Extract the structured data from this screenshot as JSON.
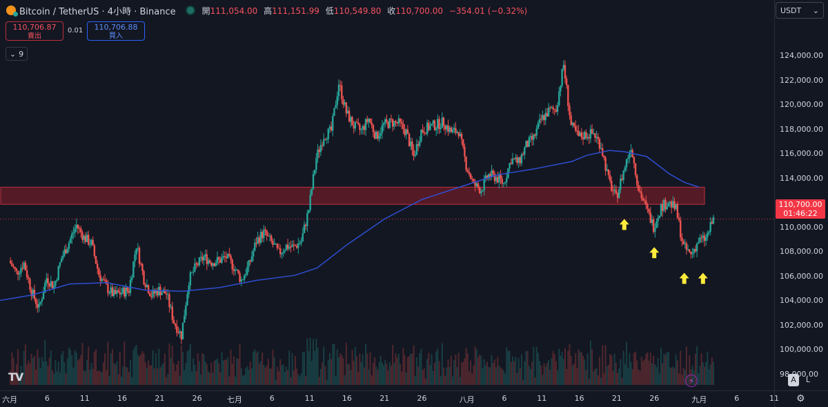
{
  "header": {
    "symbol": "Bitcoin / TetherUS · 4小時 · Binance",
    "ohlc": [
      {
        "label": "開",
        "value": "111,054.00"
      },
      {
        "label": "高",
        "value": "111,151.99"
      },
      {
        "label": "低",
        "value": "110,549.80"
      },
      {
        "label": "收",
        "value": "110,700.00"
      }
    ],
    "change": "−354.01 (−0.32%)"
  },
  "trade": {
    "sell_price": "110,706.87",
    "sell_label": "賣出",
    "spread": "0.01",
    "buy_price": "110,706.88",
    "buy_label": "買入"
  },
  "indicators_count": "9",
  "currency": "USDT",
  "last_price": {
    "price": "110,700.00",
    "countdown": "01:46:22"
  },
  "colors": {
    "up": "#26a69a",
    "down": "#ef5350",
    "ma": "#2e4fd3",
    "zone": "#8b1e2a",
    "arrow": "#ffeb3b"
  },
  "chart_data": {
    "type": "candlestick",
    "y_ticks": [
      "124,000.00",
      "122,000.00",
      "120,000.00",
      "118,000.00",
      "116,000.00",
      "114,000.00",
      "112,000.00",
      "110,000.00",
      "108,000.00",
      "106,000.00",
      "104,000.00",
      "102,000.00",
      "100,000.00",
      "98,000.00"
    ],
    "y_tick_values": [
      124000,
      122000,
      120000,
      118000,
      116000,
      114000,
      112000,
      110000,
      108000,
      106000,
      104000,
      102000,
      100000,
      98000
    ],
    "ylim": [
      96700,
      126900
    ],
    "x_ticks": [
      "六月",
      "6",
      "11",
      "16",
      "21",
      "26",
      "七月",
      "6",
      "11",
      "16",
      "21",
      "26",
      "八月",
      "6",
      "11",
      "16",
      "21",
      "26",
      "九月",
      "6",
      "11"
    ],
    "x_tick_days": [
      0,
      5,
      10,
      15,
      20,
      25,
      30,
      35,
      40,
      45,
      50,
      55,
      61,
      66,
      71,
      76,
      81,
      86,
      92,
      97,
      102
    ],
    "xlim": [
      -1.3,
      102
    ],
    "closes": [
      [
        0,
        107300
      ],
      [
        1,
        106300
      ],
      [
        2,
        107100
      ],
      [
        3,
        104800
      ],
      [
        4,
        103400
      ],
      [
        5,
        105900
      ],
      [
        6,
        105200
      ],
      [
        7,
        107500
      ],
      [
        8,
        108800
      ],
      [
        9,
        110200
      ],
      [
        10,
        109200
      ],
      [
        11,
        108700
      ],
      [
        12,
        106200
      ],
      [
        13,
        105100
      ],
      [
        14,
        104500
      ],
      [
        15,
        104700
      ],
      [
        16,
        104900
      ],
      [
        17,
        108600
      ],
      [
        18,
        105800
      ],
      [
        19,
        104500
      ],
      [
        20,
        104900
      ],
      [
        21,
        104600
      ],
      [
        22,
        102300
      ],
      [
        23,
        101200
      ],
      [
        24,
        105700
      ],
      [
        25,
        106900
      ],
      [
        26,
        107600
      ],
      [
        27,
        107200
      ],
      [
        28,
        107300
      ],
      [
        29,
        107600
      ],
      [
        30,
        106800
      ],
      [
        31,
        105700
      ],
      [
        32,
        106900
      ],
      [
        33,
        108900
      ],
      [
        34,
        109600
      ],
      [
        35,
        108800
      ],
      [
        36,
        107900
      ],
      [
        37,
        108500
      ],
      [
        38,
        108400
      ],
      [
        39,
        108900
      ],
      [
        40,
        111500
      ],
      [
        41,
        115700
      ],
      [
        42,
        117500
      ],
      [
        43,
        117900
      ],
      [
        44,
        121800
      ],
      [
        45,
        119400
      ],
      [
        46,
        118300
      ],
      [
        47,
        117900
      ],
      [
        48,
        118900
      ],
      [
        49,
        117400
      ],
      [
        50,
        118400
      ],
      [
        51,
        118600
      ],
      [
        52,
        118500
      ],
      [
        53,
        117800
      ],
      [
        54,
        115800
      ],
      [
        55,
        117900
      ],
      [
        56,
        118200
      ],
      [
        57,
        118400
      ],
      [
        58,
        118600
      ],
      [
        59,
        117800
      ],
      [
        60,
        117900
      ],
      [
        61,
        115100
      ],
      [
        62,
        113500
      ],
      [
        63,
        113100
      ],
      [
        64,
        114300
      ],
      [
        65,
        114100
      ],
      [
        66,
        113600
      ],
      [
        67,
        115600
      ],
      [
        68,
        115300
      ],
      [
        69,
        116700
      ],
      [
        70,
        117300
      ],
      [
        71,
        118800
      ],
      [
        72,
        119500
      ],
      [
        73,
        119700
      ],
      [
        74,
        123300
      ],
      [
        75,
        118300
      ],
      [
        76,
        117400
      ],
      [
        77,
        117600
      ],
      [
        78,
        117700
      ],
      [
        79,
        116700
      ],
      [
        80,
        113900
      ],
      [
        81,
        112400
      ],
      [
        82,
        114600
      ],
      [
        83,
        116700
      ],
      [
        84,
        113200
      ],
      [
        85,
        111600
      ],
      [
        86,
        110100
      ],
      [
        87,
        111700
      ],
      [
        88,
        112100
      ],
      [
        89,
        111500
      ],
      [
        90,
        108400
      ],
      [
        91,
        107800
      ],
      [
        92,
        108900
      ],
      [
        93,
        109100
      ],
      [
        94,
        110700
      ]
    ],
    "ma_points": [
      [
        -1.3,
        104050
      ],
      [
        3,
        104500
      ],
      [
        8,
        105400
      ],
      [
        13,
        105500
      ],
      [
        18,
        104900
      ],
      [
        23,
        104800
      ],
      [
        28,
        105100
      ],
      [
        33,
        105700
      ],
      [
        38,
        106100
      ],
      [
        41,
        106700
      ],
      [
        45,
        108600
      ],
      [
        50,
        110700
      ],
      [
        55,
        112300
      ],
      [
        60,
        113300
      ],
      [
        65,
        114300
      ],
      [
        70,
        114800
      ],
      [
        75,
        115400
      ],
      [
        77,
        115900
      ],
      [
        80,
        116300
      ],
      [
        82,
        116200
      ],
      [
        85,
        115800
      ],
      [
        88,
        114400
      ],
      [
        90,
        113700
      ],
      [
        92,
        113300
      ]
    ],
    "resistance_zone": [
      111900,
      113300
    ],
    "arrows": [
      [
        82,
        110200
      ],
      [
        86,
        107900
      ],
      [
        90,
        105800
      ],
      [
        92.5,
        105800
      ]
    ],
    "last_price_line": 110700
  }
}
